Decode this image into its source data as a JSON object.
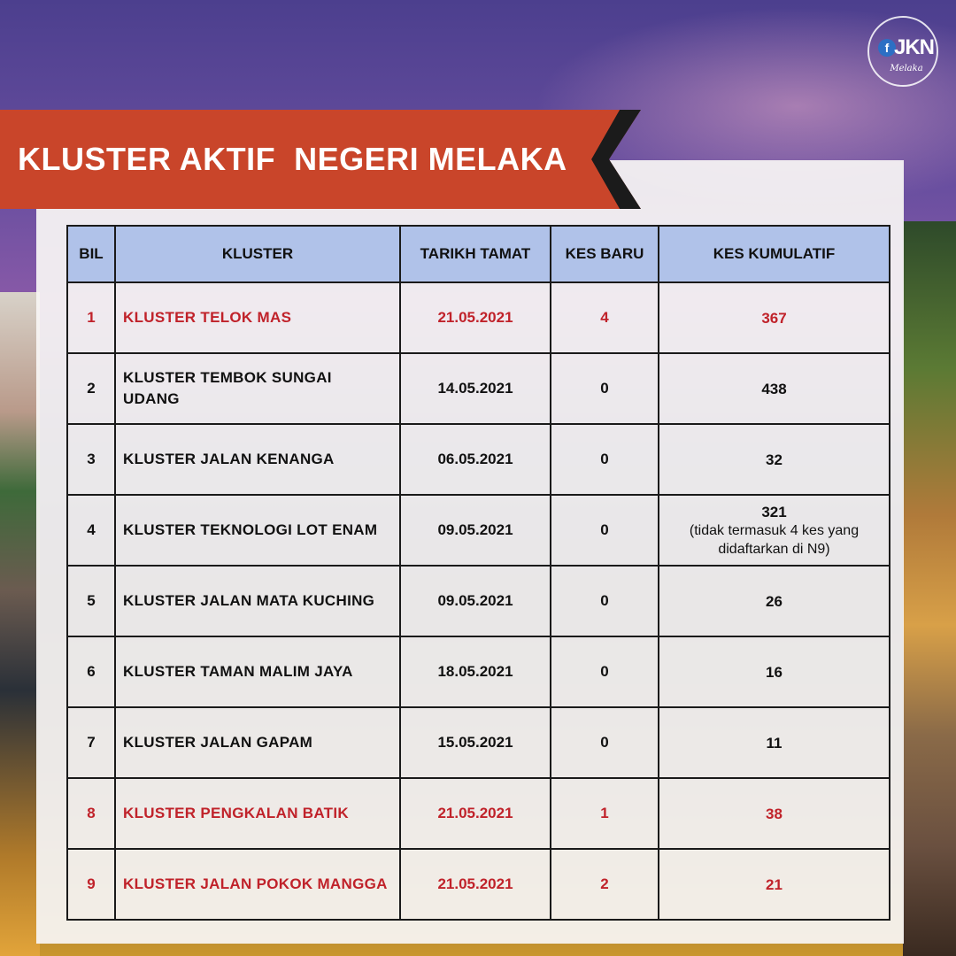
{
  "header": {
    "title": "KLUSTER AKTIF  NEGERI MELAKA"
  },
  "logo": {
    "text": "JKN",
    "badge": "f",
    "subtitle": "Melaka"
  },
  "table": {
    "headers": [
      "BIL",
      "KLUSTER",
      "TARIKH TAMAT",
      "KES BARU",
      "KES KUMULATIF"
    ],
    "rows": [
      {
        "bil": "1",
        "kluster": "KLUSTER TELOK MAS",
        "tarikh": "21.05.2021",
        "baru": "4",
        "kumulatif": "367",
        "note": "",
        "highlight": true
      },
      {
        "bil": "2",
        "kluster": "KLUSTER TEMBOK SUNGAI UDANG",
        "tarikh": "14.05.2021",
        "baru": "0",
        "kumulatif": "438",
        "note": "",
        "highlight": false
      },
      {
        "bil": "3",
        "kluster": "KLUSTER JALAN KENANGA",
        "tarikh": "06.05.2021",
        "baru": "0",
        "kumulatif": "32",
        "note": "",
        "highlight": false
      },
      {
        "bil": "4",
        "kluster": "KLUSTER TEKNOLOGI LOT ENAM",
        "tarikh": "09.05.2021",
        "baru": "0",
        "kumulatif": "321",
        "note": "(tidak termasuk 4 kes yang didaftarkan di N9)",
        "highlight": false
      },
      {
        "bil": "5",
        "kluster": "KLUSTER JALAN MATA KUCHING",
        "tarikh": "09.05.2021",
        "baru": "0",
        "kumulatif": "26",
        "note": "",
        "highlight": false
      },
      {
        "bil": "6",
        "kluster": "KLUSTER TAMAN MALIM JAYA",
        "tarikh": "18.05.2021",
        "baru": "0",
        "kumulatif": "16",
        "note": "",
        "highlight": false
      },
      {
        "bil": "7",
        "kluster": "KLUSTER JALAN GAPAM",
        "tarikh": "15.05.2021",
        "baru": "0",
        "kumulatif": "11",
        "note": "",
        "highlight": false
      },
      {
        "bil": "8",
        "kluster": "KLUSTER PENGKALAN BATIK",
        "tarikh": "21.05.2021",
        "baru": "1",
        "kumulatif": "38",
        "note": "",
        "highlight": true
      },
      {
        "bil": "9",
        "kluster": "KLUSTER JALAN POKOK MANGGA",
        "tarikh": "21.05.2021",
        "baru": "2",
        "kumulatif": "21",
        "note": "",
        "highlight": true
      }
    ]
  },
  "colors": {
    "ribbon": "#c9452a",
    "header_fill": "#aabee8",
    "highlight_text": "#c0222a"
  }
}
